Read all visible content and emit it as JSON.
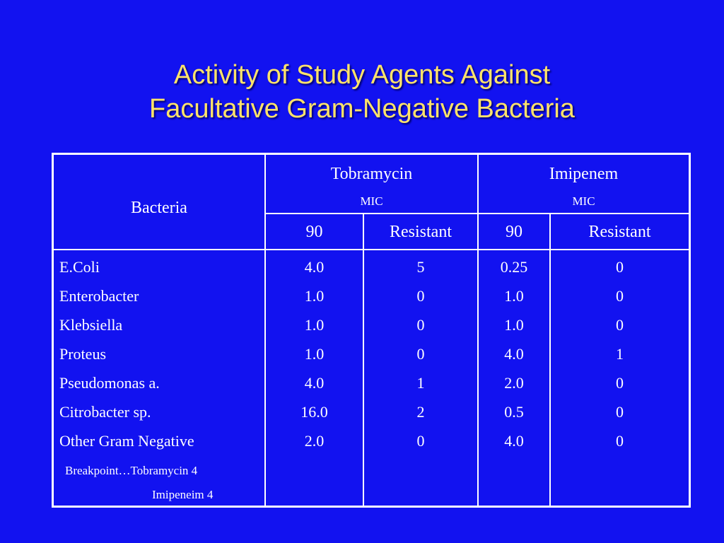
{
  "title": {
    "line1": "Activity of Study Agents Against",
    "line2": "Facultative Gram-Negative Bacteria"
  },
  "table": {
    "header": {
      "bacteria": "Bacteria",
      "tobramycin": "Tobramycin",
      "tobramycin_sub": "MIC",
      "imipenem": "Imipenem",
      "imipenem_sub": "MIC",
      "tob_90": "90",
      "tob_resistant": "Resistant",
      "imi_90": "90",
      "imi_resistant": "Resistant"
    },
    "rows": [
      {
        "bacteria": "E.Coli",
        "tob_90": "4.0",
        "tob_resistant": "5",
        "imi_90": "0.25",
        "imi_resistant": "0"
      },
      {
        "bacteria": "Enterobacter",
        "tob_90": "1.0",
        "tob_resistant": "0",
        "imi_90": "1.0",
        "imi_resistant": "0"
      },
      {
        "bacteria": "Klebsiella",
        "tob_90": "1.0",
        "tob_resistant": "0",
        "imi_90": "1.0",
        "imi_resistant": "0"
      },
      {
        "bacteria": "Proteus",
        "tob_90": "1.0",
        "tob_resistant": "0",
        "imi_90": "4.0",
        "imi_resistant": "1"
      },
      {
        "bacteria": "Pseudomonas a.",
        "tob_90": "4.0",
        "tob_resistant": "1",
        "imi_90": "2.0",
        "imi_resistant": "0"
      },
      {
        "bacteria": "Citrobacter sp.",
        "tob_90": "16.0",
        "tob_resistant": "2",
        "imi_90": "0.5",
        "imi_resistant": "0"
      },
      {
        "bacteria": "Other Gram Negative",
        "tob_90": "2.0",
        "tob_resistant": "0",
        "imi_90": "4.0",
        "imi_resistant": "0"
      }
    ],
    "breakpoint_line1": "Breakpoint…Tobramycin 4",
    "breakpoint_line2": "Imipeneim 4"
  },
  "colors": {
    "background": "#1212f0",
    "title": "#ffe36a",
    "text": "#ffffff",
    "rules": "#ffffff"
  }
}
